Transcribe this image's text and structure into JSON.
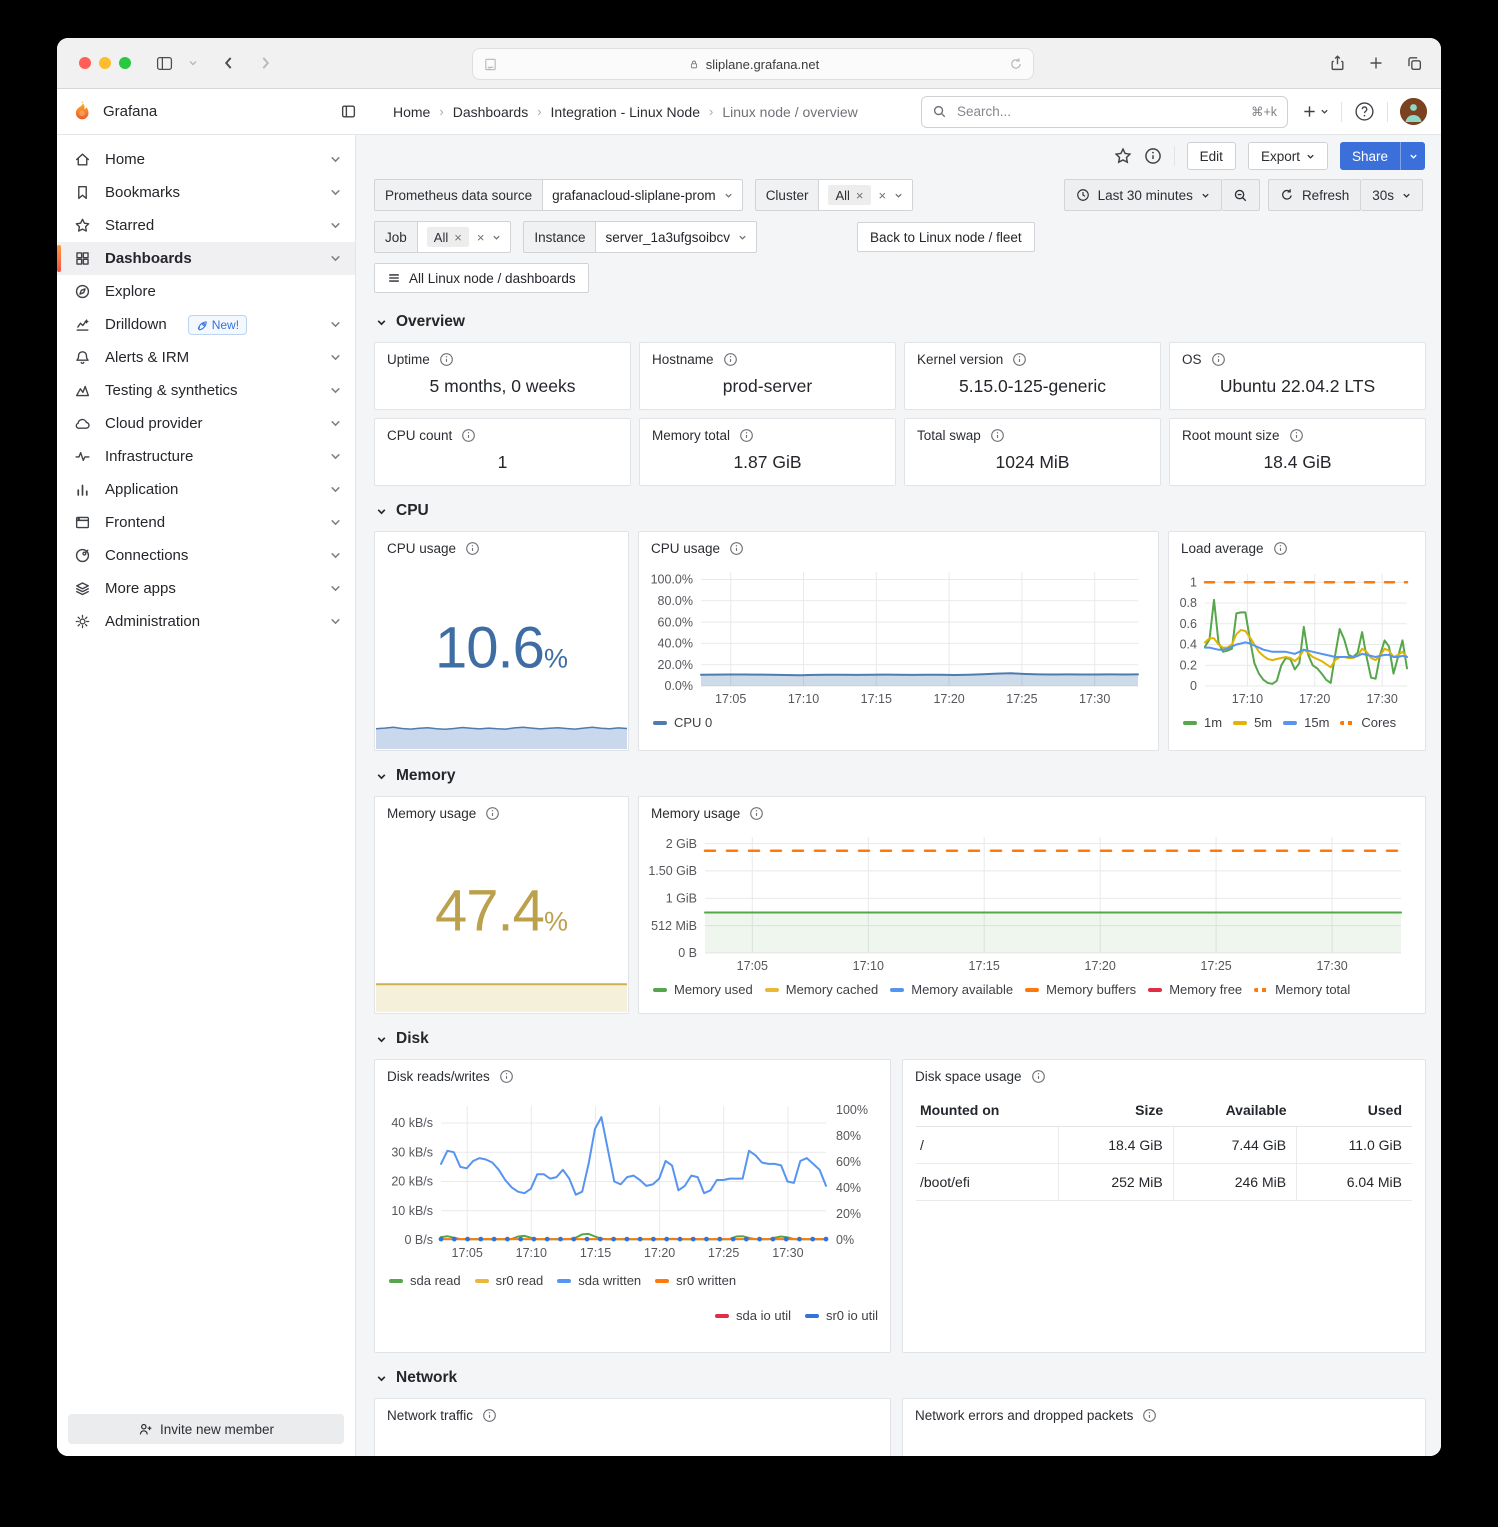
{
  "window": {
    "url": "sliplane.grafana.net"
  },
  "header": {
    "brand": "Grafana",
    "breadcrumbs": [
      "Home",
      "Dashboards",
      "Integration - Linux Node",
      "Linux node / overview"
    ],
    "search_placeholder": "Search...",
    "search_shortcut": "⌘+k"
  },
  "toolbar": {
    "edit_label": "Edit",
    "export_label": "Export",
    "share_label": "Share"
  },
  "filters": {
    "datasource_label": "Prometheus data source",
    "datasource_value": "grafanacloud-sliplane-prom",
    "cluster_label": "Cluster",
    "cluster_chip": "All",
    "job_label": "Job",
    "job_chip": "All",
    "instance_label": "Instance",
    "instance_value": "server_1a3ufgsoibcv",
    "back_button": "Back to Linux node / fleet",
    "dashboards_button": "All Linux node / dashboards",
    "time_range": "Last 30 minutes",
    "refresh_label": "Refresh",
    "refresh_interval": "30s"
  },
  "sidebar": {
    "invite_label": "Invite new member",
    "items": [
      {
        "label": "Home",
        "icon": "home",
        "chevron": true
      },
      {
        "label": "Bookmarks",
        "icon": "bookmark",
        "chevron": true
      },
      {
        "label": "Starred",
        "icon": "star",
        "chevron": true
      },
      {
        "label": "Dashboards",
        "icon": "dashboards",
        "chevron": true,
        "active": true
      },
      {
        "label": "Explore",
        "icon": "explore",
        "chevron": false
      },
      {
        "label": "Drilldown",
        "icon": "drilldown",
        "chevron": true,
        "badge": "New!"
      },
      {
        "label": "Alerts & IRM",
        "icon": "bell",
        "chevron": true
      },
      {
        "label": "Testing & synthetics",
        "icon": "testing",
        "chevron": true
      },
      {
        "label": "Cloud provider",
        "icon": "cloud",
        "chevron": true
      },
      {
        "label": "Infrastructure",
        "icon": "infrastructure",
        "chevron": true
      },
      {
        "label": "Application",
        "icon": "application",
        "chevron": true
      },
      {
        "label": "Frontend",
        "icon": "frontend",
        "chevron": true
      },
      {
        "label": "Connections",
        "icon": "connections",
        "chevron": true
      },
      {
        "label": "More apps",
        "icon": "more-apps",
        "chevron": true
      },
      {
        "label": "Administration",
        "icon": "administration",
        "chevron": true
      }
    ]
  },
  "sections": {
    "overview": "Overview",
    "cpu": "CPU",
    "memory": "Memory",
    "disk": "Disk",
    "network": "Network"
  },
  "stat_panels": [
    {
      "title": "Uptime",
      "value": "5 months, 0 weeks"
    },
    {
      "title": "Hostname",
      "value": "prod-server"
    },
    {
      "title": "Kernel version",
      "value": "5.15.0-125-generic"
    },
    {
      "title": "OS",
      "value": "Ubuntu 22.04.2 LTS"
    },
    {
      "title": "CPU count",
      "value": "1"
    },
    {
      "title": "Memory total",
      "value": "1.87 GiB"
    },
    {
      "title": "Total swap",
      "value": "1024 MiB"
    },
    {
      "title": "Root mount size",
      "value": "18.4 GiB"
    }
  ],
  "panels": {
    "cpu_stat": {
      "title": "CPU usage",
      "value": "10.6",
      "unit": "%",
      "color": "#3d6da3"
    },
    "cpu_ts": {
      "title": "CPU usage"
    },
    "load": {
      "title": "Load average"
    },
    "mem_stat": {
      "title": "Memory usage",
      "value": "47.4",
      "unit": "%",
      "color": "#bca14d"
    },
    "mem_ts": {
      "title": "Memory usage"
    },
    "disk_rw": {
      "title": "Disk reads/writes"
    },
    "disk_table": {
      "title": "Disk space usage",
      "headers": [
        "Mounted on",
        "Size",
        "Available",
        "Used"
      ],
      "rows": [
        [
          "/",
          "18.4 GiB",
          "7.44 GiB",
          "11.0 GiB"
        ],
        [
          "/boot/efi",
          "252 MiB",
          "246 MiB",
          "6.04 MiB"
        ]
      ]
    },
    "net_traffic": {
      "title": "Network traffic"
    },
    "net_err": {
      "title": "Network errors and dropped packets"
    }
  },
  "chart_data": {
    "cpu_spark": {
      "type": "area",
      "ydomain": [
        0,
        15
      ],
      "series": [
        {
          "name": "cpu",
          "color": "#4e7cb0",
          "width": 1.5,
          "fill": "#c9d8ec",
          "values": [
            10.5,
            10.8,
            11.2,
            10.6,
            10.3,
            10.7,
            11.0,
            10.5,
            10.2,
            10.6,
            11.1,
            10.7,
            10.4,
            10.8,
            10.5,
            10.3,
            10.9,
            11.3,
            10.8,
            10.4,
            10.7,
            11.0,
            10.6,
            10.3,
            10.8,
            11.2,
            10.7,
            10.5,
            10.9,
            10.6
          ]
        }
      ]
    },
    "mem_spark": {
      "type": "area",
      "ydomain": [
        0,
        49.5
      ],
      "series": [
        {
          "name": "mem",
          "color": "#cdb051",
          "width": 2,
          "fill": "#f5f0da",
          "values": [
            47.4,
            47.4,
            47.4,
            47.4,
            47.4,
            47.4,
            47.4,
            47.4,
            47.4,
            47.4,
            47.4,
            47.4
          ]
        }
      ]
    },
    "cpu_ts": {
      "type": "line",
      "ydomain": [
        0,
        107
      ],
      "yticks": [
        {
          "v": 0,
          "label": "0.0%"
        },
        {
          "v": 20,
          "label": "20.0%"
        },
        {
          "v": 40,
          "label": "40.0%"
        },
        {
          "v": 60,
          "label": "60.0%"
        },
        {
          "v": 80,
          "label": "80.0%"
        },
        {
          "v": 100,
          "label": "100.0%"
        }
      ],
      "xticks": [
        {
          "f": 0.068,
          "label": "17:05"
        },
        {
          "f": 0.2346,
          "label": "17:10"
        },
        {
          "f": 0.4012,
          "label": "17:15"
        },
        {
          "f": 0.5678,
          "label": "17:20"
        },
        {
          "f": 0.7344,
          "label": "17:25"
        },
        {
          "f": 0.901,
          "label": "17:30"
        }
      ],
      "legend": [
        {
          "label": "CPU 0",
          "color": "#4e7cb0"
        }
      ],
      "series": [
        {
          "name": "CPU 0",
          "color": "#4e7cb0",
          "width": 2,
          "fill": "rgba(78,124,176,0.28)",
          "values": [
            10.6,
            10.7,
            10.8,
            10.8,
            10.7,
            10.6,
            10.3,
            10.1,
            10.4,
            10.6,
            10.5,
            10.4,
            10.6,
            10.7,
            10.5,
            10.4,
            10.6,
            10.5,
            10.3,
            10.5,
            11.0,
            11.6,
            11.9,
            11.3,
            10.9,
            10.8,
            10.9,
            10.8,
            10.8,
            10.9,
            10.8,
            10.9
          ]
        }
      ]
    },
    "load": {
      "type": "line",
      "ydomain": [
        0,
        1.08
      ],
      "yticks": [
        {
          "v": 0,
          "label": "0"
        },
        {
          "v": 0.2,
          "label": "0.2"
        },
        {
          "v": 0.4,
          "label": "0.4"
        },
        {
          "v": 0.6,
          "label": "0.6"
        },
        {
          "v": 0.8,
          "label": "0.8"
        },
        {
          "v": 1,
          "label": "1"
        }
      ],
      "xticks": [
        {
          "f": 0.21,
          "label": "17:10"
        },
        {
          "f": 0.543,
          "label": "17:20"
        },
        {
          "f": 0.877,
          "label": "17:30"
        }
      ],
      "legend": [
        {
          "label": "1m",
          "color": "#56A64B"
        },
        {
          "label": "5m",
          "color": "#E0B400"
        },
        {
          "label": "15m",
          "color": "#5794F2"
        },
        {
          "label": "Cores",
          "color": "#FF780A",
          "dash": true
        }
      ],
      "series": [
        {
          "name": "Cores",
          "color": "#FF780A",
          "width": 2.5,
          "dash": "9 11",
          "values": [
            1,
            1
          ]
        },
        {
          "name": "1m",
          "color": "#56A64B",
          "width": 2,
          "values": [
            0.38,
            0.45,
            0.83,
            0.42,
            0.33,
            0.34,
            0.36,
            0.7,
            0.71,
            0.71,
            0.45,
            0.22,
            0.12,
            0.06,
            0.03,
            0.02,
            0.05,
            0.2,
            0.27,
            0.26,
            0.16,
            0.22,
            0.57,
            0.3,
            0.2,
            0.17,
            0.12,
            0.06,
            0.03,
            0.3,
            0.55,
            0.45,
            0.3,
            0.28,
            0.32,
            0.52,
            0.28,
            0.08,
            0.07,
            0.3,
            0.44,
            0.38,
            0.12,
            0.28,
            0.44,
            0.17
          ]
        },
        {
          "name": "5m",
          "color": "#E0B400",
          "width": 2,
          "values": [
            0.42,
            0.46,
            0.46,
            0.4,
            0.37,
            0.37,
            0.4,
            0.5,
            0.54,
            0.53,
            0.47,
            0.4,
            0.33,
            0.29,
            0.26,
            0.25,
            0.26,
            0.27,
            0.28,
            0.27,
            0.24,
            0.28,
            0.35,
            0.32,
            0.28,
            0.26,
            0.24,
            0.21,
            0.18,
            0.25,
            0.28,
            0.28,
            0.27,
            0.27,
            0.29,
            0.36,
            0.33,
            0.27,
            0.25,
            0.29,
            0.36,
            0.34,
            0.28,
            0.3,
            0.33,
            0.28
          ]
        },
        {
          "name": "15m",
          "color": "#5794F2",
          "width": 2,
          "values": [
            0.37,
            0.37,
            0.36,
            0.35,
            0.35,
            0.36,
            0.38,
            0.4,
            0.41,
            0.42,
            0.41,
            0.39,
            0.37,
            0.35,
            0.34,
            0.33,
            0.33,
            0.33,
            0.33,
            0.32,
            0.31,
            0.33,
            0.35,
            0.34,
            0.33,
            0.32,
            0.31,
            0.3,
            0.29,
            0.28,
            0.28,
            0.28,
            0.28,
            0.28,
            0.29,
            0.31,
            0.3,
            0.29,
            0.28,
            0.29,
            0.3,
            0.3,
            0.28,
            0.28,
            0.29,
            0.28
          ]
        }
      ]
    },
    "mem_ts": {
      "type": "line",
      "ydomain": [
        0,
        2.12
      ],
      "yticks": [
        {
          "v": 0,
          "label": "0 B"
        },
        {
          "v": 0.5,
          "label": "512 MiB"
        },
        {
          "v": 1,
          "label": "1 GiB"
        },
        {
          "v": 1.5,
          "label": "1.50 GiB"
        },
        {
          "v": 2,
          "label": "2 GiB"
        }
      ],
      "xticks": [
        {
          "f": 0.068,
          "label": "17:05"
        },
        {
          "f": 0.2346,
          "label": "17:10"
        },
        {
          "f": 0.4012,
          "label": "17:15"
        },
        {
          "f": 0.5678,
          "label": "17:20"
        },
        {
          "f": 0.7344,
          "label": "17:25"
        },
        {
          "f": 0.901,
          "label": "17:30"
        }
      ],
      "legend": [
        {
          "label": "Memory used",
          "color": "#56A64B"
        },
        {
          "label": "Memory cached",
          "color": "#EAB839"
        },
        {
          "label": "Memory available",
          "color": "#5794F2"
        },
        {
          "label": "Memory buffers",
          "color": "#FF780A"
        },
        {
          "label": "Memory free",
          "color": "#E02F44"
        },
        {
          "label": "Memory total",
          "color": "#FF780A",
          "dash": true
        }
      ],
      "series": [
        {
          "name": "Memory total",
          "color": "#FF780A",
          "width": 2.5,
          "dash": "10 12",
          "values": [
            1.87,
            1.87
          ]
        },
        {
          "name": "Memory used",
          "color": "#56A64B",
          "width": 2,
          "fill": "rgba(86,166,75,0.10)",
          "values": [
            0.74,
            0.74,
            0.74,
            0.74,
            0.74,
            0.74,
            0.74,
            0.74,
            0.74,
            0.74,
            0.74,
            0.74,
            0.74,
            0.74,
            0.74,
            0.74,
            0.74,
            0.74,
            0.74,
            0.74,
            0.74,
            0.74,
            0.74,
            0.74,
            0.74,
            0.74,
            0.74,
            0.74,
            0.74,
            0.74
          ]
        }
      ]
    },
    "disk_rw": {
      "type": "line",
      "ydomain": [
        0,
        45.8
      ],
      "y2domain": [
        0,
        103
      ],
      "yticks": [
        {
          "v": 0,
          "label": "0 B/s"
        },
        {
          "v": 10,
          "label": "10 kB/s"
        },
        {
          "v": 20,
          "label": "20 kB/s"
        },
        {
          "v": 30,
          "label": "30 kB/s"
        },
        {
          "v": 40,
          "label": "40 kB/s"
        }
      ],
      "y2ticks": [
        {
          "v": 0,
          "label": "0%"
        },
        {
          "v": 20,
          "label": "20%"
        },
        {
          "v": 40,
          "label": "40%"
        },
        {
          "v": 60,
          "label": "60%"
        },
        {
          "v": 80,
          "label": "80%"
        },
        {
          "v": 100,
          "label": "100%"
        }
      ],
      "xticks": [
        {
          "f": 0.068,
          "label": "17:05"
        },
        {
          "f": 0.2346,
          "label": "17:10"
        },
        {
          "f": 0.4012,
          "label": "17:15"
        },
        {
          "f": 0.5678,
          "label": "17:20"
        },
        {
          "f": 0.7344,
          "label": "17:25"
        },
        {
          "f": 0.901,
          "label": "17:30"
        }
      ],
      "legend": [
        {
          "label": "sda read",
          "color": "#56A64B"
        },
        {
          "label": "sr0 read",
          "color": "#EAB839"
        },
        {
          "label": "sda written",
          "color": "#5794F2"
        },
        {
          "label": "sr0 written",
          "color": "#FF780A"
        }
      ],
      "legend2": [
        {
          "label": "sda io util",
          "color": "#E02F44"
        },
        {
          "label": "sr0 io util",
          "color": "#3274D9"
        }
      ],
      "series": [
        {
          "name": "sda written",
          "color": "#5794F2",
          "width": 2,
          "values": [
            26,
            30.5,
            30,
            25,
            24.5,
            27,
            28,
            27.5,
            26.5,
            24,
            20.5,
            18,
            16.5,
            16,
            17.5,
            22.5,
            22.5,
            21,
            21.5,
            24,
            21,
            15.5,
            16.5,
            26,
            38,
            42,
            31,
            20,
            19,
            21.5,
            22,
            20.5,
            18.5,
            19,
            21,
            27,
            25.5,
            17,
            18.5,
            22,
            21.5,
            16,
            17,
            20.5,
            20.5,
            21,
            21,
            21,
            30.5,
            29,
            26.5,
            26,
            26,
            25.5,
            20,
            19.5,
            27,
            28,
            26,
            24,
            18.5
          ]
        },
        {
          "name": "sda read",
          "color": "#56A64B",
          "width": 2,
          "values": [
            1.0,
            1.3,
            0.8,
            0.3,
            0.25,
            0.25,
            0.25,
            0.25,
            0.25,
            0.25,
            0.25,
            0.3,
            1.2,
            1.4,
            0.8,
            0.3,
            0.25,
            0.25,
            0.25,
            0.25,
            0.3,
            0.8,
            1.9,
            2.1,
            1.2,
            0.4,
            0.25,
            0.25,
            0.25,
            0.25,
            0.25,
            0.25,
            0.25,
            0.25,
            0.25,
            0.3,
            0.4,
            0.3,
            0.25,
            0.25,
            0.25,
            0.25,
            0.25,
            0.25,
            0.25,
            0.3,
            1.2,
            1.3,
            0.7,
            0.3,
            0.25,
            0.25,
            0.8,
            1.2,
            0.9,
            0.3,
            0.25,
            0.25,
            0.25,
            0.25,
            0.25
          ]
        },
        {
          "name": "sr0 written",
          "color": "#FF780A",
          "width": 2,
          "values": [
            0.3,
            0.3
          ]
        },
        {
          "name": "sr0 io util",
          "color": "#3274D9",
          "type": "points",
          "r": 2.4,
          "values": [
            0.3,
            0.3,
            0.3,
            0.3,
            0.3,
            0.3,
            0.3,
            0.3,
            0.3,
            0.3,
            0.3,
            0.3,
            0.3,
            0.3,
            0.3,
            0.3,
            0.3,
            0.3,
            0.3,
            0.3,
            0.3,
            0.3,
            0.3,
            0.3,
            0.3,
            0.3,
            0.3,
            0.3,
            0.3,
            0.3
          ]
        }
      ]
    }
  }
}
